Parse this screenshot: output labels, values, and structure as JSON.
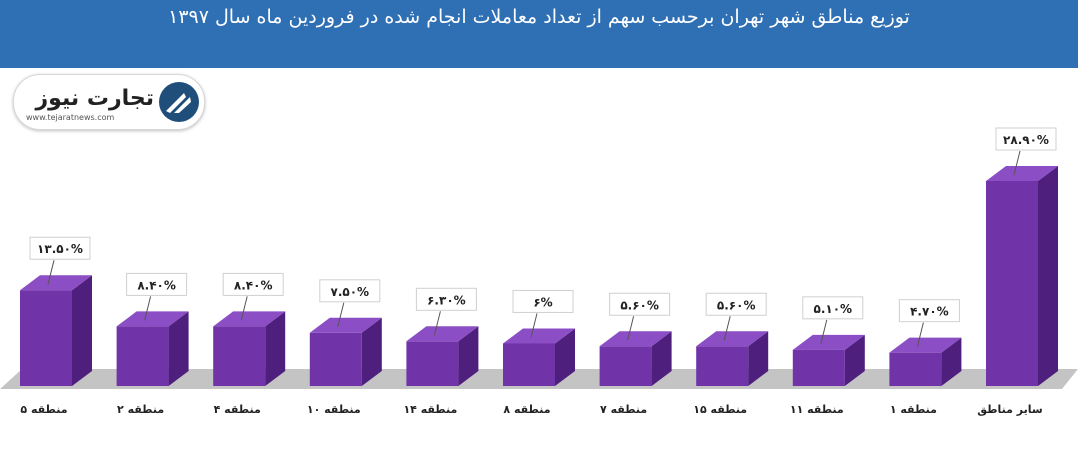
{
  "title": "توزیع مناطق شهر تهران برحسب سهم از تعداد معاملات انجام شده در فروردین ماه سال ۱۳۹۷",
  "logo": {
    "brand": "تجارت نیوز",
    "url": "www.tejaratnews.com"
  },
  "colors": {
    "header": "#2f6fb4",
    "bar_front": "#7033a8",
    "bar_side": "#4e1f7d",
    "bar_top": "#8b4ec4",
    "floor": "#c4c4c4"
  },
  "chart_data": {
    "type": "bar",
    "title": "توزیع مناطق شهر تهران برحسب سهم از تعداد معاملات انجام شده در فروردین ماه سال ۱۳۹۷",
    "categories": [
      "منطقه ۵",
      "منطقه ۲",
      "منطقه ۴",
      "منطقه ۱۰",
      "منطقه ۱۴",
      "منطقه ۸",
      "منطقه ۷",
      "منطقه ۱۵",
      "منطقه ۱۱",
      "منطقه ۱",
      "سایر مناطق"
    ],
    "values": [
      13.5,
      8.4,
      8.4,
      7.5,
      6.3,
      6,
      5.6,
      5.6,
      5.1,
      4.7,
      28.9
    ],
    "data_labels": [
      "۱۳.۵۰%",
      "۸.۴۰%",
      "۸.۴۰%",
      "۷.۵۰%",
      "۶.۳۰%",
      "۶%",
      "۵.۶۰%",
      "۵.۶۰%",
      "۵.۱۰%",
      "۴.۷۰%",
      "۲۸.۹۰%"
    ],
    "unit": "%",
    "ylim": [
      0,
      30
    ],
    "grid": false,
    "legend": "none"
  }
}
